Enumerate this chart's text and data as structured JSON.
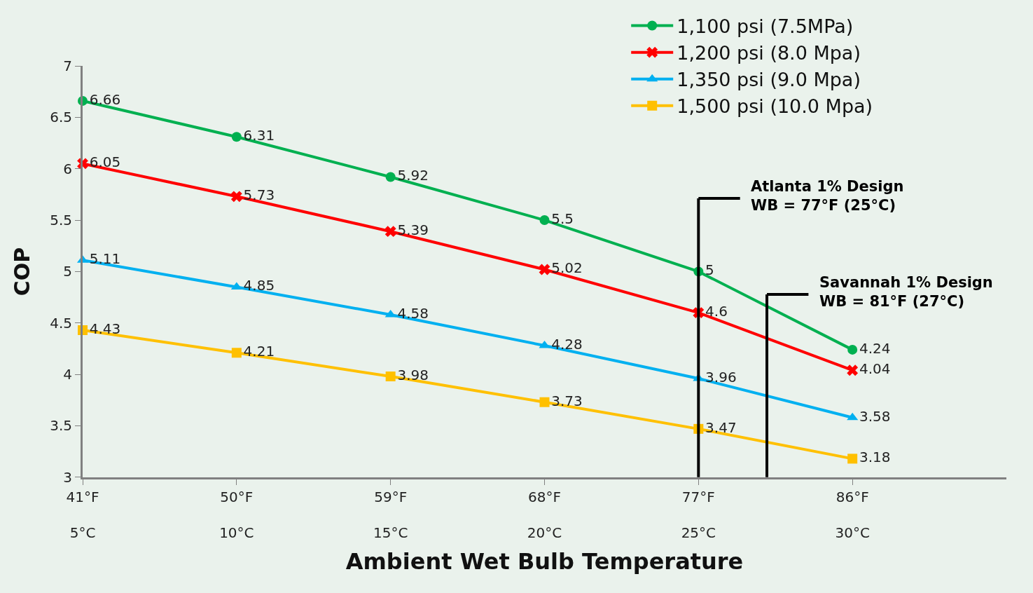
{
  "chart_data": {
    "type": "line",
    "xlabel": "Ambient Wet Bulb Temperature",
    "ylabel": "COP",
    "x": [
      41,
      50,
      59,
      68,
      77,
      86
    ],
    "xlim": [
      41,
      95
    ],
    "xticks": [
      {
        "value": 41,
        "label": "41°F"
      },
      {
        "value": 50,
        "label": "50°F"
      },
      {
        "value": 59,
        "label": "59°F"
      },
      {
        "value": 68,
        "label": "68°F"
      },
      {
        "value": 77,
        "label": "77°F"
      },
      {
        "value": 86,
        "label": "86°F"
      }
    ],
    "x2lim": [
      5,
      35
    ],
    "x2ticks": [
      {
        "value": 5,
        "label": "5°C"
      },
      {
        "value": 10,
        "label": "10°C"
      },
      {
        "value": 15,
        "label": "15°C"
      },
      {
        "value": 20,
        "label": "20°C"
      },
      {
        "value": 25,
        "label": "25°C"
      },
      {
        "value": 30,
        "label": "30°C"
      }
    ],
    "ylim": [
      3,
      7
    ],
    "yticks": [
      3,
      3.5,
      4,
      4.5,
      5,
      5.5,
      6,
      6.5,
      7
    ],
    "series": [
      {
        "name": "1,100 psi (7.5MPa)",
        "color": "#00b050",
        "marker": "circle",
        "values": [
          6.66,
          6.31,
          5.92,
          5.5,
          5,
          4.24
        ]
      },
      {
        "name": "1,200 psi (8.0 Mpa)",
        "color": "#ff0000",
        "marker": "cross",
        "values": [
          6.05,
          5.73,
          5.39,
          5.02,
          4.6,
          4.04
        ]
      },
      {
        "name": "1,350 psi (9.0 Mpa)",
        "color": "#00b0f0",
        "marker": "triangle",
        "values": [
          5.11,
          4.85,
          4.58,
          4.28,
          3.96,
          3.58
        ]
      },
      {
        "name": "1,500 psi (10.0 Mpa)",
        "color": "#ffc000",
        "marker": "square",
        "values": [
          4.43,
          4.21,
          3.98,
          3.73,
          3.47,
          3.18
        ]
      }
    ],
    "ref_lines": [
      {
        "axis": "x",
        "value": 77,
        "label": "Atlanta 1% Design\nWB = 77°F (25°C)",
        "color": "#000000"
      },
      {
        "axis": "x",
        "value": 81,
        "label": "Savannah 1% Design\nWB = 81°F (27°C)",
        "color": "#000000"
      }
    ],
    "data_labels": true,
    "grid": false,
    "legend": "top right"
  }
}
